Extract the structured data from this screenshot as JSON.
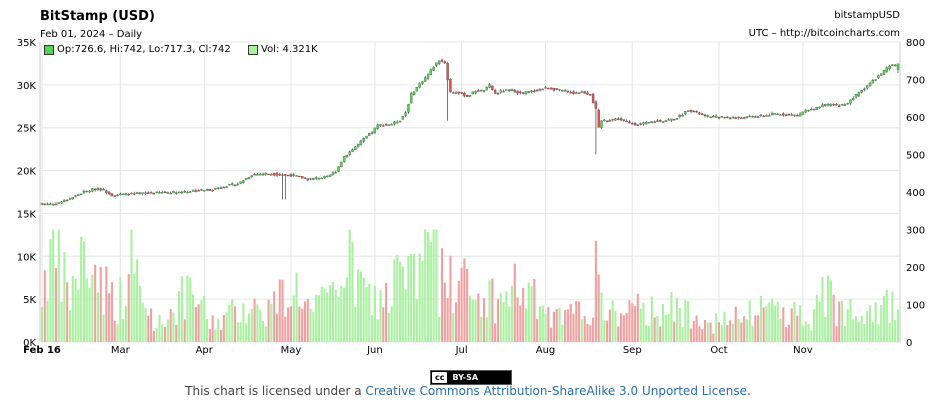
{
  "header": {
    "title": "BitStamp (USD)",
    "subtitle": "Feb 01, 2024 – Daily",
    "symbol": "bitstampUSD",
    "source": "UTC – http://bitcoincharts.com"
  },
  "legend": {
    "ohlc_text": "Op:726.6, Hi:742, Lo:717.3, Cl:742",
    "vol_text": "Vol: 4.321K"
  },
  "license": {
    "badge_left": "cc",
    "badge_right": "BY-SA",
    "prefix": "This chart is licensed under a ",
    "link_text": "Creative Commons Attribution-ShareAlike 3.0 Unported License",
    "suffix": "."
  },
  "colors": {
    "up": "#4fd64f",
    "down": "#e05050",
    "up_vol": "#a9f0a0",
    "down_vol": "#f0a0a0",
    "grid": "#e6e6e6",
    "wick": "#555555"
  },
  "chart_data": {
    "type": "candlestick",
    "x_tick_labels": [
      "Feb 16",
      "Mar",
      "Apr",
      "May",
      "Jun",
      "Jul",
      "Aug",
      "Sep",
      "Oct",
      "Nov"
    ],
    "y_left_label_ticks": [
      "0K",
      "5K",
      "10K",
      "15K",
      "20K",
      "25K",
      "30K",
      "35K"
    ],
    "y_left_range": [
      0,
      35000
    ],
    "y_right_label_ticks": [
      "0",
      "100",
      "200",
      "300",
      "400",
      "500",
      "600",
      "700",
      "800"
    ],
    "y_right_range": [
      0,
      800
    ],
    "price_anchors_by_day": [
      [
        0,
        369
      ],
      [
        5,
        368
      ],
      [
        10,
        383
      ],
      [
        15,
        400
      ],
      [
        20,
        410
      ],
      [
        22,
        405
      ],
      [
        25,
        392
      ],
      [
        30,
        394
      ],
      [
        40,
        398
      ],
      [
        50,
        400
      ],
      [
        55,
        404
      ],
      [
        60,
        406
      ],
      [
        65,
        415
      ],
      [
        70,
        422
      ],
      [
        75,
        446
      ],
      [
        80,
        449
      ],
      [
        85,
        447
      ],
      [
        90,
        444
      ],
      [
        95,
        434
      ],
      [
        98,
        437
      ],
      [
        102,
        440
      ],
      [
        105,
        455
      ],
      [
        108,
        495
      ],
      [
        112,
        520
      ],
      [
        116,
        548
      ],
      [
        118,
        560
      ],
      [
        120,
        578
      ],
      [
        125,
        581
      ],
      [
        128,
        592
      ],
      [
        130,
        612
      ],
      [
        132,
        660
      ],
      [
        135,
        688
      ],
      [
        138,
        713
      ],
      [
        140,
        735
      ],
      [
        142,
        752
      ],
      [
        144,
        745
      ],
      [
        145,
        700
      ],
      [
        146,
        666
      ],
      [
        148,
        666
      ],
      [
        150,
        662
      ],
      [
        152,
        655
      ],
      [
        155,
        670
      ],
      [
        158,
        670
      ],
      [
        160,
        684
      ],
      [
        162,
        662
      ],
      [
        165,
        670
      ],
      [
        168,
        672
      ],
      [
        171,
        663
      ],
      [
        174,
        667
      ],
      [
        177,
        672
      ],
      [
        180,
        677
      ],
      [
        182,
        676
      ],
      [
        186,
        670
      ],
      [
        190,
        664
      ],
      [
        193,
        667
      ],
      [
        196,
        660
      ],
      [
        198,
        620
      ],
      [
        199,
        570
      ],
      [
        200,
        590
      ],
      [
        203,
        593
      ],
      [
        206,
        595
      ],
      [
        210,
        583
      ],
      [
        213,
        580
      ],
      [
        216,
        583
      ],
      [
        220,
        590
      ],
      [
        222,
        590
      ],
      [
        226,
        595
      ],
      [
        228,
        602
      ],
      [
        231,
        620
      ],
      [
        234,
        612
      ],
      [
        237,
        601
      ],
      [
        240,
        600
      ],
      [
        245,
        599
      ],
      [
        250,
        598
      ],
      [
        254,
        601
      ],
      [
        258,
        603
      ],
      [
        262,
        608
      ],
      [
        266,
        607
      ],
      [
        270,
        604
      ],
      [
        273,
        618
      ],
      [
        276,
        620
      ],
      [
        279,
        630
      ],
      [
        282,
        634
      ],
      [
        285,
        630
      ],
      [
        288,
        638
      ],
      [
        291,
        658
      ],
      [
        294,
        678
      ],
      [
        297,
        696
      ],
      [
        300,
        716
      ],
      [
        303,
        735
      ],
      [
        306,
        742
      ]
    ],
    "volume_anchors_by_day": [
      [
        0,
        160
      ],
      [
        3,
        310
      ],
      [
        6,
        240
      ],
      [
        10,
        150
      ],
      [
        14,
        260
      ],
      [
        17,
        240
      ],
      [
        20,
        220
      ],
      [
        22,
        190
      ],
      [
        26,
        130
      ],
      [
        30,
        150
      ],
      [
        32,
        270
      ],
      [
        36,
        120
      ],
      [
        42,
        60
      ],
      [
        50,
        140
      ],
      [
        56,
        140
      ],
      [
        60,
        60
      ],
      [
        66,
        80
      ],
      [
        72,
        120
      ],
      [
        80,
        100
      ],
      [
        86,
        150
      ],
      [
        92,
        180
      ],
      [
        96,
        90
      ],
      [
        100,
        120
      ],
      [
        104,
        140
      ],
      [
        108,
        280
      ],
      [
        112,
        200
      ],
      [
        118,
        130
      ],
      [
        124,
        150
      ],
      [
        130,
        260
      ],
      [
        134,
        180
      ],
      [
        138,
        400
      ],
      [
        142,
        180
      ],
      [
        146,
        210
      ],
      [
        150,
        200
      ],
      [
        154,
        130
      ],
      [
        160,
        150
      ],
      [
        164,
        120
      ],
      [
        168,
        180
      ],
      [
        172,
        160
      ],
      [
        178,
        120
      ],
      [
        182,
        70
      ],
      [
        188,
        80
      ],
      [
        196,
        110
      ],
      [
        200,
        150
      ],
      [
        204,
        90
      ],
      [
        210,
        100
      ],
      [
        216,
        100
      ],
      [
        222,
        120
      ],
      [
        228,
        90
      ],
      [
        234,
        110
      ],
      [
        240,
        60
      ],
      [
        246,
        70
      ],
      [
        252,
        80
      ],
      [
        258,
        120
      ],
      [
        264,
        110
      ],
      [
        270,
        90
      ],
      [
        276,
        80
      ],
      [
        280,
        160
      ],
      [
        286,
        100
      ],
      [
        290,
        140
      ],
      [
        296,
        120
      ],
      [
        300,
        130
      ],
      [
        303,
        110
      ],
      [
        306,
        120
      ]
    ],
    "total_days": 307,
    "series": [
      {
        "name": "Op/Hi/Lo/Cl",
        "axis": "right"
      },
      {
        "name": "Vol",
        "axis": "left"
      }
    ],
    "last_candle": {
      "open": 726.6,
      "high": 742,
      "low": 717.3,
      "close": 742,
      "volume": 4321
    },
    "grid": true
  }
}
